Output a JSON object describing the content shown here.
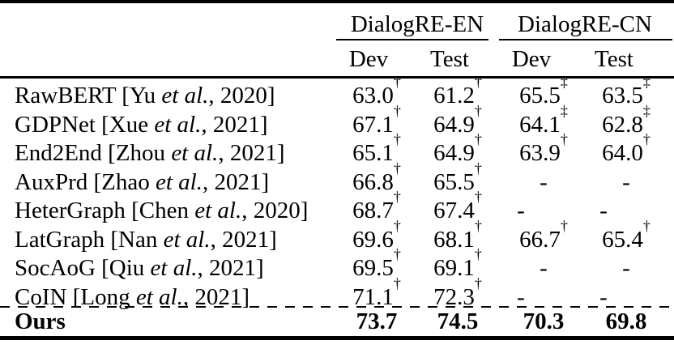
{
  "page": {
    "background_color": "#ffffff",
    "text_color": "#000000"
  },
  "table": {
    "column_groups": [
      {
        "label": "DialogRE-EN",
        "sub_columns": [
          "Dev",
          "Test"
        ]
      },
      {
        "label": "DialogRE-CN",
        "sub_columns": [
          "Dev",
          "Test"
        ]
      }
    ],
    "rows": [
      {
        "method": {
          "pre": "RawBERT [Yu ",
          "etal": "et al.",
          "post": ", 2020]"
        },
        "cells": [
          {
            "v": "63.0",
            "m": "†"
          },
          {
            "v": "61.2",
            "m": "†"
          },
          {
            "v": "65.5",
            "m": "‡"
          },
          {
            "v": "63.5",
            "m": "‡"
          }
        ]
      },
      {
        "method": {
          "pre": "GDPNet [Xue ",
          "etal": "et al.",
          "post": ", 2021]"
        },
        "cells": [
          {
            "v": "67.1",
            "m": "†"
          },
          {
            "v": "64.9",
            "m": "†"
          },
          {
            "v": "64.1",
            "m": "‡"
          },
          {
            "v": "62.8",
            "m": "‡"
          }
        ]
      },
      {
        "method": {
          "pre": "End2End [Zhou ",
          "etal": "et al.",
          "post": ", 2021]"
        },
        "cells": [
          {
            "v": "65.1",
            "m": "†"
          },
          {
            "v": "64.9",
            "m": "†"
          },
          {
            "v": "63.9",
            "m": "†"
          },
          {
            "v": "64.0",
            "m": "†"
          }
        ]
      },
      {
        "method": {
          "pre": "AuxPrd [Zhao ",
          "etal": "et al.",
          "post": ", 2021]"
        },
        "cells": [
          {
            "v": "66.8",
            "m": "†"
          },
          {
            "v": "65.5",
            "m": "†"
          },
          {
            "v": "-",
            "m": ""
          },
          {
            "v": "-",
            "m": ""
          }
        ]
      },
      {
        "method": {
          "pre": "HeterGraph [Chen ",
          "etal": "et al.",
          "post": ", 2020]"
        },
        "cells": [
          {
            "v": "68.7",
            "m": "†"
          },
          {
            "v": "67.4",
            "m": "†"
          },
          {
            "v": "-",
            "m": ""
          },
          {
            "v": "-",
            "m": ""
          }
        ]
      },
      {
        "method": {
          "pre": "LatGraph [Nan ",
          "etal": "et al.",
          "post": ", 2021]"
        },
        "cells": [
          {
            "v": "69.6",
            "m": "†"
          },
          {
            "v": "68.1",
            "m": "†"
          },
          {
            "v": "66.7",
            "m": "†"
          },
          {
            "v": "65.4",
            "m": "†"
          }
        ]
      },
      {
        "method": {
          "pre": "SocAoG [Qiu ",
          "etal": "et al.",
          "post": ", 2021]"
        },
        "cells": [
          {
            "v": "69.5",
            "m": "†"
          },
          {
            "v": "69.1",
            "m": "†"
          },
          {
            "v": "-",
            "m": ""
          },
          {
            "v": "-",
            "m": ""
          }
        ]
      },
      {
        "method": {
          "pre": "CoIN [Long ",
          "etal": "et al.",
          "post": ", 2021]"
        },
        "cells": [
          {
            "v": "71.1",
            "m": "†"
          },
          {
            "v": "72.3",
            "m": "†"
          },
          {
            "v": "-",
            "m": ""
          },
          {
            "v": "-",
            "m": ""
          }
        ]
      }
    ],
    "ours_row": {
      "label": "Ours",
      "cells": [
        "73.7",
        "74.5",
        "70.3",
        "69.8"
      ]
    }
  }
}
